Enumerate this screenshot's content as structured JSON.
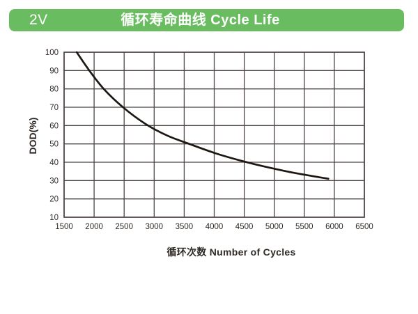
{
  "header": {
    "tag": "2V",
    "title": "循环寿命曲线 Cycle Life",
    "bg_color": "#6abc60",
    "text_color": "#ffffff"
  },
  "chart_data": {
    "type": "line",
    "title": "循环寿命曲线 Cycle Life",
    "xlabel": "循环次数 Number of Cycles",
    "ylabel": "DOD(%)",
    "xlim": [
      1500,
      6500
    ],
    "ylim": [
      10,
      100
    ],
    "xticks": [
      1500,
      2000,
      2500,
      3000,
      3500,
      4000,
      4500,
      5000,
      5500,
      6000,
      6500
    ],
    "yticks": [
      100,
      90,
      80,
      70,
      60,
      50,
      40,
      30,
      20,
      10
    ],
    "grid": true,
    "legend_position": "none",
    "grid_color": "#4e4545",
    "tick_label_color": "#2f2a26",
    "series": [
      {
        "name": "cycle-life-curve",
        "color": "#1d1712",
        "points": [
          [
            1710,
            100
          ],
          [
            1920,
            90
          ],
          [
            2160,
            80
          ],
          [
            2480,
            70
          ],
          [
            2850,
            61
          ],
          [
            3220,
            54.5
          ],
          [
            3600,
            49.8
          ],
          [
            4020,
            44.9
          ],
          [
            4450,
            40.8
          ],
          [
            4900,
            37.2
          ],
          [
            5380,
            33.9
          ],
          [
            5900,
            31
          ]
        ]
      }
    ]
  }
}
